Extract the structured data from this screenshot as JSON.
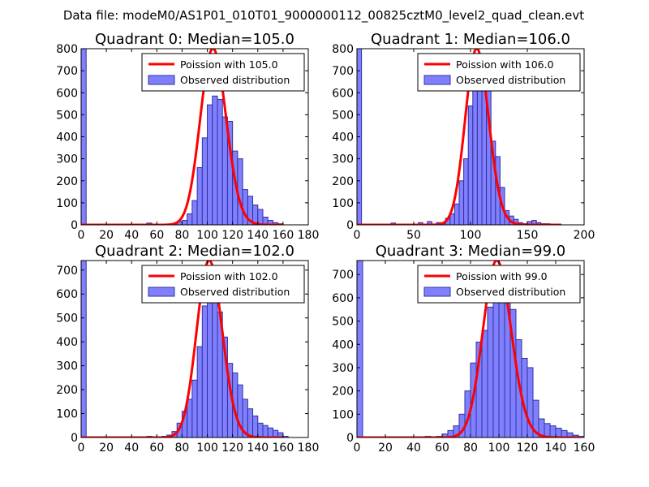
{
  "figure_title": "Data file: modeM0/AS1P01_010T01_9000000112_00825cztM0_level2_quad_clean.evt",
  "colors": {
    "hist_fill": "#8080ff",
    "hist_edge": "#3030a0",
    "poisson_line": "#ff0000",
    "frame": "#000000"
  },
  "chart_data": [
    {
      "type": "histogram",
      "title": "Quadrant 0: Median=105.0",
      "legend": {
        "placement": "top-right",
        "line_label": "Poission with 105.0",
        "hist_label": "Observed distribution"
      },
      "xlim": [
        0,
        180
      ],
      "ylim": [
        0,
        800
      ],
      "xticks": [
        0,
        20,
        40,
        60,
        80,
        100,
        120,
        140,
        160,
        180
      ],
      "yticks": [
        0,
        100,
        200,
        300,
        400,
        500,
        600,
        700,
        800
      ],
      "bin_width": 4,
      "bins": [
        [
          0,
          800
        ],
        [
          52,
          8
        ],
        [
          72,
          5
        ],
        [
          76,
          15
        ],
        [
          80,
          20
        ],
        [
          84,
          50
        ],
        [
          88,
          110
        ],
        [
          92,
          260
        ],
        [
          96,
          395
        ],
        [
          100,
          545
        ],
        [
          104,
          585
        ],
        [
          108,
          570
        ],
        [
          112,
          490
        ],
        [
          116,
          470
        ],
        [
          120,
          335
        ],
        [
          124,
          300
        ],
        [
          128,
          160
        ],
        [
          132,
          130
        ],
        [
          136,
          90
        ],
        [
          140,
          70
        ],
        [
          144,
          35
        ],
        [
          148,
          20
        ],
        [
          152,
          10
        ],
        [
          156,
          5
        ]
      ],
      "poisson": {
        "mean": 105.0,
        "scale": 800,
        "x_range": [
          0,
          160
        ]
      }
    },
    {
      "type": "histogram",
      "title": "Quadrant 1: Median=106.0",
      "legend": {
        "placement": "top-right",
        "line_label": "Poission with 106.0",
        "hist_label": "Observed distribution"
      },
      "xlim": [
        0,
        200
      ],
      "ylim": [
        0,
        800
      ],
      "xticks": [
        0,
        50,
        100,
        150,
        200
      ],
      "yticks": [
        0,
        100,
        200,
        300,
        400,
        500,
        600,
        700,
        800
      ],
      "bin_width": 4,
      "bins": [
        [
          0,
          800
        ],
        [
          30,
          8
        ],
        [
          54,
          10
        ],
        [
          62,
          15
        ],
        [
          70,
          10
        ],
        [
          74,
          5
        ],
        [
          78,
          30
        ],
        [
          82,
          50
        ],
        [
          86,
          95
        ],
        [
          90,
          200
        ],
        [
          94,
          300
        ],
        [
          98,
          540
        ],
        [
          102,
          670
        ],
        [
          106,
          715
        ],
        [
          110,
          635
        ],
        [
          114,
          620
        ],
        [
          118,
          380
        ],
        [
          122,
          310
        ],
        [
          126,
          170
        ],
        [
          130,
          65
        ],
        [
          134,
          40
        ],
        [
          138,
          25
        ],
        [
          142,
          10
        ],
        [
          146,
          5
        ],
        [
          150,
          15
        ],
        [
          154,
          20
        ],
        [
          158,
          10
        ],
        [
          162,
          5
        ],
        [
          166,
          5
        ]
      ],
      "poisson": {
        "mean": 106.0,
        "scale": 800,
        "x_range": [
          0,
          180
        ]
      }
    },
    {
      "type": "histogram",
      "title": "Quadrant 2: Median=102.0",
      "legend": {
        "placement": "top-right",
        "line_label": "Poission with 102.0",
        "hist_label": "Observed distribution"
      },
      "xlim": [
        0,
        180
      ],
      "ylim": [
        0,
        740
      ],
      "xticks": [
        0,
        20,
        40,
        60,
        80,
        100,
        120,
        140,
        160,
        180
      ],
      "yticks": [
        0,
        100,
        200,
        300,
        400,
        500,
        600,
        700
      ],
      "bin_width": 4,
      "bins": [
        [
          0,
          740
        ],
        [
          52,
          5
        ],
        [
          64,
          5
        ],
        [
          68,
          10
        ],
        [
          72,
          25
        ],
        [
          76,
          60
        ],
        [
          80,
          110
        ],
        [
          84,
          160
        ],
        [
          88,
          240
        ],
        [
          92,
          380
        ],
        [
          96,
          550
        ],
        [
          100,
          580
        ],
        [
          104,
          575
        ],
        [
          108,
          525
        ],
        [
          112,
          420
        ],
        [
          116,
          310
        ],
        [
          120,
          270
        ],
        [
          124,
          220
        ],
        [
          128,
          160
        ],
        [
          132,
          120
        ],
        [
          136,
          90
        ],
        [
          140,
          60
        ],
        [
          144,
          50
        ],
        [
          148,
          40
        ],
        [
          152,
          30
        ],
        [
          156,
          20
        ],
        [
          160,
          5
        ]
      ],
      "poisson": {
        "mean": 102.0,
        "scale": 740,
        "x_range": [
          0,
          160
        ]
      }
    },
    {
      "type": "histogram",
      "title": "Quadrant 3: Median=99.0",
      "legend": {
        "placement": "top-right",
        "line_label": "Poission with 99.0",
        "hist_label": "Observed distribution"
      },
      "xlim": [
        0,
        160
      ],
      "ylim": [
        0,
        760
      ],
      "xticks": [
        0,
        20,
        40,
        60,
        80,
        100,
        120,
        140,
        160
      ],
      "yticks": [
        0,
        100,
        200,
        300,
        400,
        500,
        600,
        700
      ],
      "bin_width": 4,
      "bins": [
        [
          0,
          760
        ],
        [
          48,
          5
        ],
        [
          56,
          5
        ],
        [
          60,
          15
        ],
        [
          64,
          30
        ],
        [
          68,
          50
        ],
        [
          72,
          100
        ],
        [
          76,
          200
        ],
        [
          80,
          320
        ],
        [
          84,
          410
        ],
        [
          88,
          460
        ],
        [
          92,
          560
        ],
        [
          96,
          615
        ],
        [
          100,
          600
        ],
        [
          104,
          600
        ],
        [
          108,
          550
        ],
        [
          112,
          420
        ],
        [
          116,
          340
        ],
        [
          120,
          300
        ],
        [
          124,
          160
        ],
        [
          128,
          80
        ],
        [
          132,
          60
        ],
        [
          136,
          50
        ],
        [
          140,
          40
        ],
        [
          144,
          30
        ],
        [
          148,
          20
        ],
        [
          152,
          10
        ],
        [
          156,
          5
        ]
      ],
      "poisson": {
        "mean": 99.0,
        "scale": 760,
        "x_range": [
          0,
          158
        ]
      }
    }
  ]
}
